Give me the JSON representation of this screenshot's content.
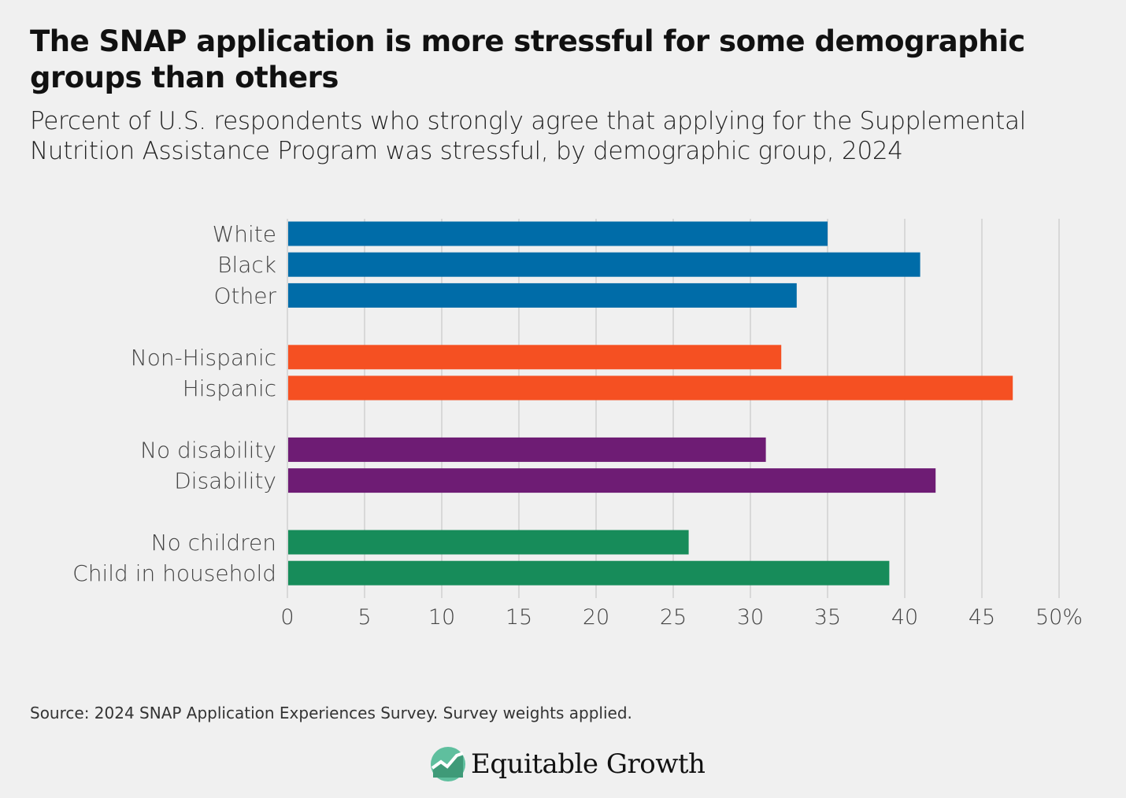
{
  "chart_data": {
    "type": "bar",
    "orientation": "horizontal",
    "title": "The SNAP application is more stressful for some demographic groups than others",
    "subtitle": "Percent of U.S. respondents who strongly agree that applying for the Supplemental Nutrition Assistance Program was stressful, by demographic group, 2024",
    "categories": [
      "White",
      "Black",
      "Other",
      "Non-Hispanic",
      "Hispanic",
      "No disability",
      "Disability",
      "No children",
      "Child in household"
    ],
    "values": [
      35,
      41,
      33,
      32,
      47,
      31,
      42,
      26,
      39
    ],
    "groups": [
      0,
      0,
      0,
      1,
      1,
      2,
      2,
      3,
      3
    ],
    "group_colors": [
      "#006ca8",
      "#f55022",
      "#6e1c74",
      "#178c5a"
    ],
    "xlim": [
      0,
      50
    ],
    "x_ticks": [
      "0",
      "5",
      "10",
      "15",
      "20",
      "25",
      "30",
      "35",
      "40",
      "45",
      "50%"
    ],
    "grid": true
  },
  "source": "Source: 2024 SNAP Application Experiences Survey. Survey weights applied.",
  "logo": {
    "text": "Equitable Growth",
    "color": "#5fbf9e"
  }
}
